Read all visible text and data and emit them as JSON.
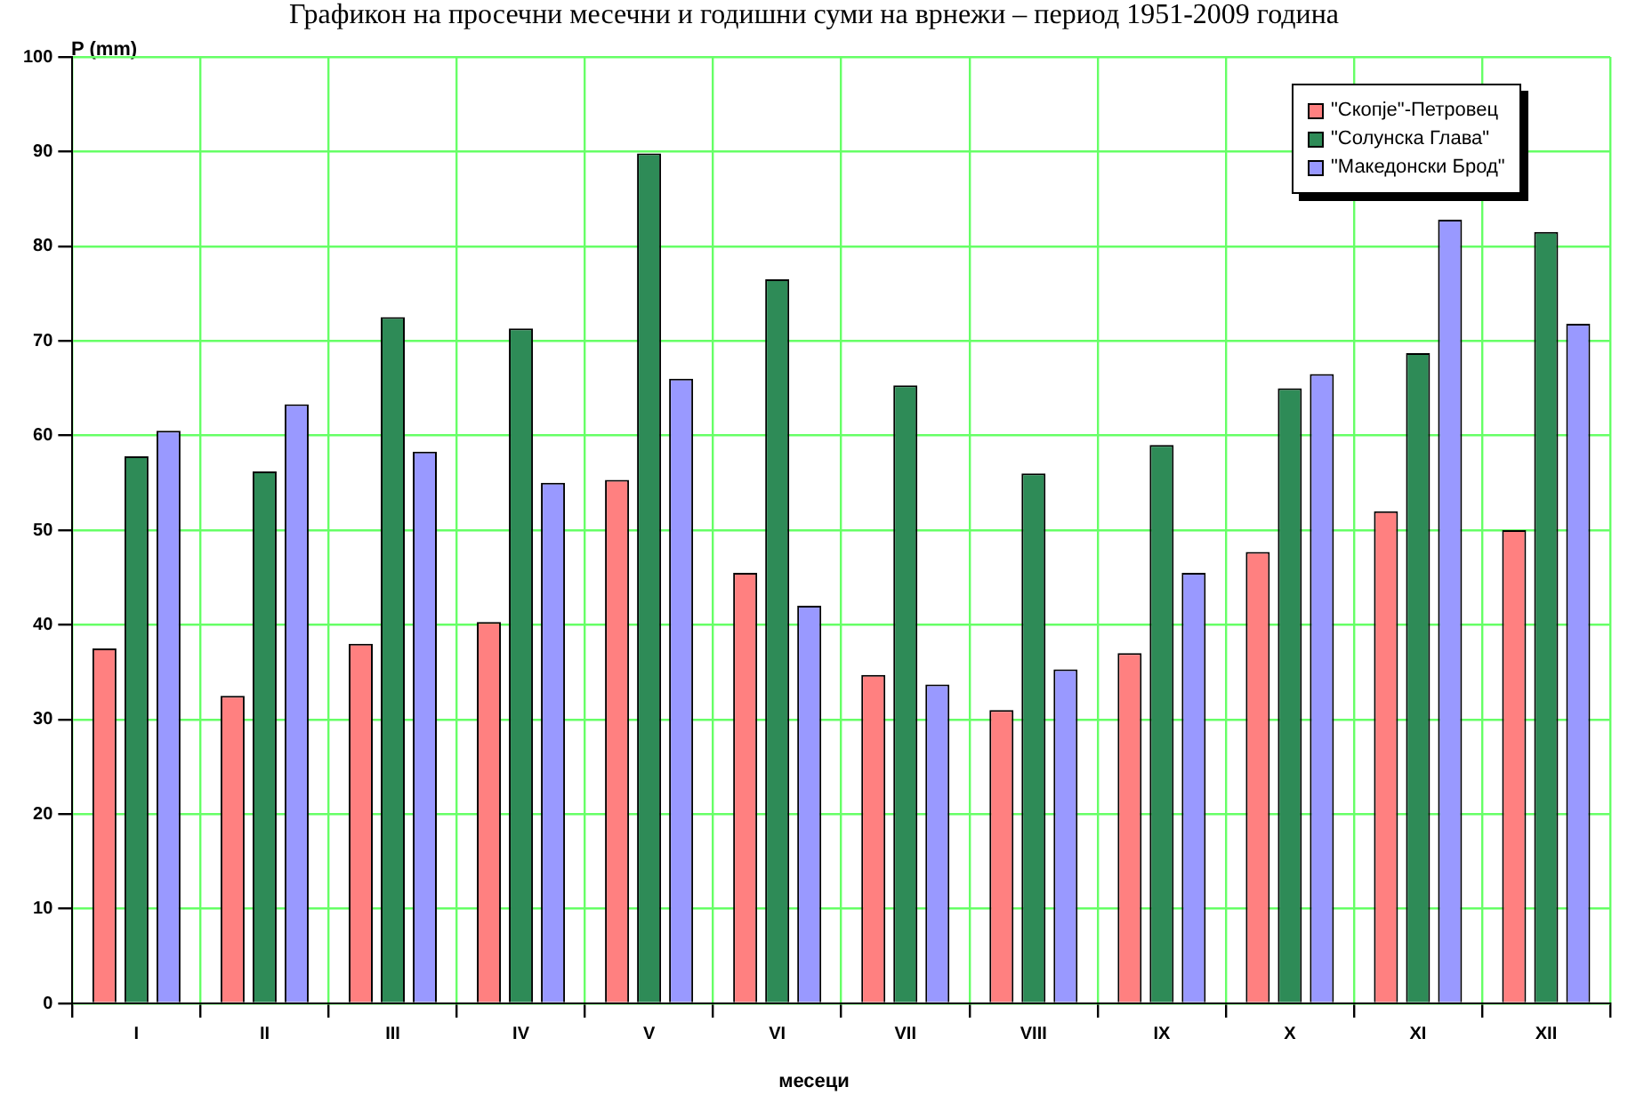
{
  "chart_data": {
    "type": "bar",
    "title": "Графикон на просечни месечни и годишни суми на врнежи – период 1951-2009 година",
    "xlabel": "месеци",
    "ylabel": "P (mm)",
    "categories": [
      "I",
      "II",
      "III",
      "IV",
      "V",
      "VI",
      "VII",
      "VIII",
      "IX",
      "X",
      "XI",
      "XII"
    ],
    "series": [
      {
        "name": "\"Скопје\"-Петровец",
        "color": "#ff8080",
        "values": [
          37.5,
          32.5,
          38,
          40.3,
          55.3,
          45.5,
          34.7,
          31,
          37,
          47.7,
          52,
          50
        ]
      },
      {
        "name": "\"Солунска Глава\"",
        "color": "#2e8b57",
        "values": [
          57.8,
          56.2,
          72.5,
          71.3,
          89.8,
          76.5,
          65.3,
          56,
          59,
          65,
          68.7,
          81.5
        ]
      },
      {
        "name": "\"Македонски Брод\"",
        "color": "#9999ff",
        "values": [
          60.5,
          63.3,
          58.3,
          55,
          66,
          42,
          33.7,
          35.3,
          45.5,
          66.5,
          82.8,
          71.8
        ]
      }
    ],
    "ylim": [
      0,
      100
    ],
    "yticks": [
      0,
      10,
      20,
      30,
      40,
      50,
      60,
      70,
      80,
      90,
      100
    ],
    "grid": true,
    "legend": "top right"
  }
}
